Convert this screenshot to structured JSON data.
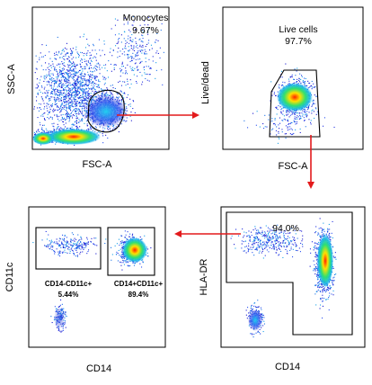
{
  "colors": {
    "arrow": "#e31a1c",
    "gate": "#000000",
    "density_low": "#1f1fd0",
    "density_mid": "#18c0e0",
    "density_high": "#ffe000",
    "density_peak": "#ff2000"
  },
  "panels": [
    {
      "id": "p1",
      "x_axis_label": "FSC-A",
      "y_axis_label": "SSC-A",
      "gates": [
        {
          "name": "Monocytes",
          "percent": "9.67%"
        }
      ]
    },
    {
      "id": "p2",
      "x_axis_label": "FSC-A",
      "y_axis_label": "Live/dead",
      "gates": [
        {
          "name": "Live cells",
          "percent": "97.7%"
        }
      ]
    },
    {
      "id": "p3",
      "x_axis_label": "CD14",
      "y_axis_label": "HLA-DR",
      "gates": [
        {
          "name": "",
          "percent": "94.0%"
        }
      ]
    },
    {
      "id": "p4",
      "x_axis_label": "CD14",
      "y_axis_label": "CD11c",
      "gates": [
        {
          "name": "CD14-CD11c+",
          "percent": "5.44%"
        },
        {
          "name": "CD14+CD11c+",
          "percent": "89.4%"
        }
      ]
    }
  ]
}
